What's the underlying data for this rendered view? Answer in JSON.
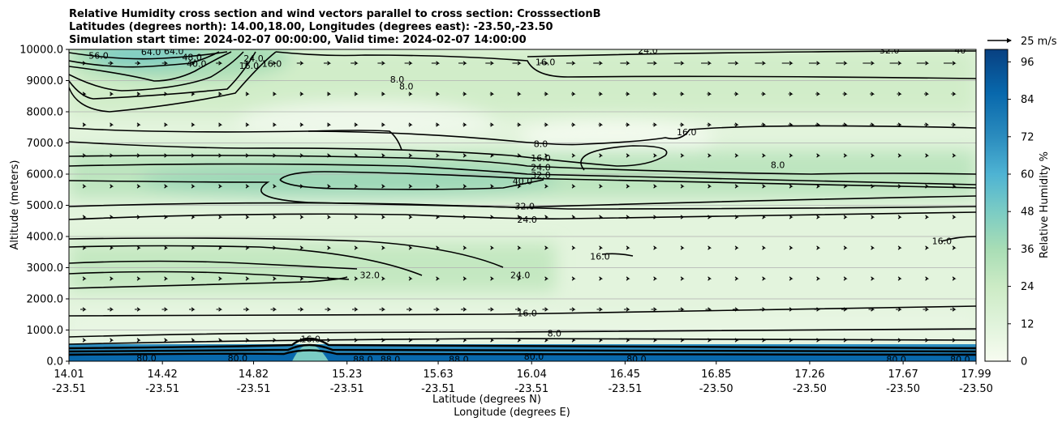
{
  "chart_data": {
    "type": "contour",
    "title": [
      "Relative Humidity cross section and wind vectors parallel to cross section: CrosssectionB",
      "Latitudes (degrees north): 14.00,18.00, Longitudes (degrees east): -23.50,-23.50",
      "Simulation start time: 2024-02-07 00:00:00, Valid time: 2024-02-07 14:00:00"
    ],
    "ylabel": "Altitude (meters)",
    "xlabel_lat": "Latitude (degrees N)",
    "xlabel_lon": "Longitude (degrees E)",
    "ylim": [
      0,
      10000
    ],
    "y_ticks": [
      "0.0",
      "1000.0",
      "2000.0",
      "3000.0",
      "4000.0",
      "5000.0",
      "6000.0",
      "7000.0",
      "8000.0",
      "9000.0",
      "10000.0"
    ],
    "x_ticks": [
      {
        "lat": "14.01",
        "lon": "-23.51"
      },
      {
        "lat": "14.42",
        "lon": "-23.51"
      },
      {
        "lat": "14.82",
        "lon": "-23.51"
      },
      {
        "lat": "15.23",
        "lon": "-23.51"
      },
      {
        "lat": "15.63",
        "lon": "-23.51"
      },
      {
        "lat": "16.04",
        "lon": "-23.51"
      },
      {
        "lat": "16.45",
        "lon": "-23.51"
      },
      {
        "lat": "16.85",
        "lon": "-23.50"
      },
      {
        "lat": "17.26",
        "lon": "-23.50"
      },
      {
        "lat": "17.67",
        "lon": "-23.50"
      },
      {
        "lat": "17.99",
        "lon": "-23.50"
      }
    ],
    "grid": "horizontal",
    "colorbar": {
      "label": "Relative Humidity %",
      "range": [
        0,
        100
      ],
      "ticks": [
        "0",
        "12",
        "24",
        "36",
        "48",
        "60",
        "72",
        "84",
        "96"
      ]
    },
    "quiver_key": "25 m/s",
    "contour_labels": [
      {
        "text": "56.0",
        "x": 14.14,
        "y": 9800
      },
      {
        "text": "64.0",
        "x": 14.37,
        "y": 9920
      },
      {
        "text": "64.0",
        "x": 14.47,
        "y": 9950
      },
      {
        "text": "48.0",
        "x": 14.55,
        "y": 9750
      },
      {
        "text": "40.0",
        "x": 14.57,
        "y": 9550
      },
      {
        "text": "24.0",
        "x": 14.82,
        "y": 9720
      },
      {
        "text": "16.0",
        "x": 14.8,
        "y": 9480
      },
      {
        "text": "16.0",
        "x": 14.9,
        "y": 9550
      },
      {
        "text": "24.0",
        "x": 16.55,
        "y": 9970
      },
      {
        "text": "16.0",
        "x": 16.1,
        "y": 9600
      },
      {
        "text": "32.0",
        "x": 17.61,
        "y": 9980
      },
      {
        "text": "40",
        "x": 17.92,
        "y": 9980
      },
      {
        "text": "8.0",
        "x": 15.45,
        "y": 9040
      },
      {
        "text": "8.0",
        "x": 15.49,
        "y": 8820
      },
      {
        "text": "16.0",
        "x": 16.72,
        "y": 7350
      },
      {
        "text": "8.0",
        "x": 16.08,
        "y": 6970
      },
      {
        "text": "16.0",
        "x": 16.08,
        "y": 6520
      },
      {
        "text": "24.0",
        "x": 16.08,
        "y": 6220
      },
      {
        "text": "32.0",
        "x": 16.08,
        "y": 5980
      },
      {
        "text": "40.0",
        "x": 16.0,
        "y": 5780
      },
      {
        "text": "8.0",
        "x": 17.12,
        "y": 6300
      },
      {
        "text": "32.0",
        "x": 16.01,
        "y": 4980
      },
      {
        "text": "24.0",
        "x": 16.02,
        "y": 4540
      },
      {
        "text": "16.0",
        "x": 17.84,
        "y": 3860
      },
      {
        "text": "16.0",
        "x": 16.34,
        "y": 3370
      },
      {
        "text": "32.0",
        "x": 15.33,
        "y": 2770
      },
      {
        "text": "24.0",
        "x": 15.99,
        "y": 2770
      },
      {
        "text": "16.0",
        "x": 16.02,
        "y": 1540
      },
      {
        "text": "16.0",
        "x": 15.07,
        "y": 720
      },
      {
        "text": "8.0",
        "x": 16.14,
        "y": 900
      },
      {
        "text": "80.0",
        "x": 14.35,
        "y": 100
      },
      {
        "text": "80.0",
        "x": 14.75,
        "y": 100
      },
      {
        "text": "88.0",
        "x": 15.3,
        "y": 60
      },
      {
        "text": "88.0",
        "x": 15.42,
        "y": 60
      },
      {
        "text": "88.0",
        "x": 15.72,
        "y": 60
      },
      {
        "text": "80.0",
        "x": 16.05,
        "y": 160
      },
      {
        "text": "80.0",
        "x": 16.5,
        "y": 80
      },
      {
        "text": "80.0",
        "x": 17.64,
        "y": 60
      },
      {
        "text": "80.0",
        "x": 17.92,
        "y": 60
      }
    ]
  }
}
